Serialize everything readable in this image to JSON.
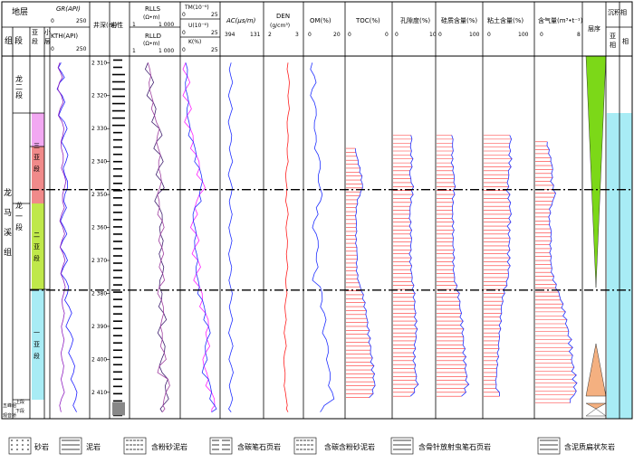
{
  "header": {
    "strata": "地层",
    "system": "组",
    "member": "段",
    "submember": "亚段",
    "sub_layer": "小层",
    "depth": "井深(m)",
    "lithology": "岩性",
    "sequence": "层序",
    "sedimentary_facies": "沉积相",
    "subfacies": "亚相",
    "facies": "相"
  },
  "formation_labels": {
    "longmaxi": [
      "龙",
      "马",
      "溪",
      "组"
    ],
    "long2": "龙二段",
    "long1": "龙一段",
    "sub3": "三亚段",
    "sub2": "二亚段",
    "sub1": "一亚段",
    "upper": "上段",
    "lower": "下段",
    "wufeng": "五峰组",
    "guanyinqiao": "观音桥"
  },
  "tracks": {
    "gr": {
      "label": "GR(API)",
      "min": "0",
      "max": "250"
    },
    "kth": {
      "label": "KTH(API)",
      "min": "0",
      "max": "250"
    },
    "rlls": {
      "label": "RLLS",
      "unit": "(Ω•m)",
      "min": "1",
      "max": "1 000"
    },
    "rlld": {
      "label": "RLLD",
      "unit": "(Ω•m)",
      "min": "1",
      "max": "1 000"
    },
    "tm": {
      "label": "TM(10⁻⁶)",
      "min": "0",
      "max": "25"
    },
    "u": {
      "label": "U(10⁻⁶)",
      "min": "0",
      "max": "25"
    },
    "k": {
      "label": "K(%)",
      "min": "0",
      "max": "25"
    },
    "ac": {
      "label": "AC(μs/m)",
      "min": "394",
      "max": "131"
    },
    "den": {
      "label": "DEN",
      "unit": "(g/cm³)",
      "min": "2",
      "max": "3"
    },
    "om": {
      "label": "OM(%)",
      "min": "0",
      "max": "20"
    },
    "toc": {
      "label": "TOC(%)",
      "min": "0",
      "max": "0"
    },
    "porosity": {
      "label": "孔隙度(%)",
      "min": "0",
      "max": "10"
    },
    "silica": {
      "label": "硅质含量(%)",
      "min": "0",
      "max": "100"
    },
    "clay": {
      "label": "粘土含量(%)",
      "min": "0",
      "max": "100"
    },
    "gas": {
      "label": "含气量(m³•t⁻¹)",
      "min": "0",
      "max": "8"
    }
  },
  "depth_ticks": [
    "2 310",
    "2 320",
    "2 330",
    "2 340",
    "2 350",
    "2 360",
    "2 370",
    "2 380",
    "2 390",
    "2 400",
    "2 410"
  ],
  "legend": [
    "砂岩",
    "泥岩",
    "含粉砂泥岩",
    "含碳笔石页岩",
    "含碳含粉砂泥岩",
    "含骨针放射虫笔石页岩",
    "含泥质扁状灰岩"
  ],
  "colors": {
    "sub3": "#f2a8f2",
    "sub3_lower": "#f08a8a",
    "sub2": "#bfe84a",
    "sub1": "#a8ecf5",
    "gr": "#2020ff",
    "kth": "#9020c0",
    "rlls": "#402070",
    "rlld": "#a040a0",
    "tm": "#2030ff",
    "u": "#ff20ff",
    "k": "#e040e0",
    "ac": "#2030ff",
    "den": "#ff2020",
    "om": "#2030ff",
    "bars": "#ff3030",
    "envelope": "#2030ff"
  },
  "chart_data": {
    "type": "well-log",
    "depth_range": [
      2308,
      2418
    ],
    "boundary_depths": [
      2348.5,
      2379
    ],
    "series": [
      {
        "name": "GR",
        "depth": [
          2310,
          2313,
          2316,
          2320,
          2324,
          2328,
          2332,
          2336,
          2340,
          2344,
          2348,
          2352,
          2356,
          2360,
          2364,
          2368,
          2372,
          2376,
          2380,
          2384,
          2388,
          2392,
          2396,
          2400,
          2404,
          2408,
          2412,
          2416
        ],
        "values": [
          68,
          72,
          60,
          75,
          70,
          90,
          88,
          95,
          100,
          92,
          110,
          86,
          82,
          88,
          80,
          92,
          85,
          100,
          110,
          120,
          118,
          130,
          135,
          140,
          150,
          155,
          165,
          170
        ]
      },
      {
        "name": "KTH",
        "depth": [
          2310,
          2313,
          2316,
          2320,
          2324,
          2328,
          2332,
          2336,
          2340,
          2344,
          2348,
          2352,
          2356,
          2360,
          2364,
          2368,
          2372,
          2376,
          2380,
          2384,
          2388,
          2392,
          2396,
          2400,
          2404,
          2408,
          2412,
          2416
        ],
        "values": [
          60,
          65,
          58,
          70,
          62,
          75,
          80,
          70,
          82,
          88,
          90,
          78,
          72,
          80,
          74,
          82,
          78,
          84,
          86,
          78,
          82,
          76,
          80,
          74,
          80,
          78,
          70,
          68
        ]
      },
      {
        "name": "RLLS",
        "depth": [
          2310,
          2314,
          2318,
          2322,
          2326,
          2330,
          2334,
          2338,
          2342,
          2346,
          2350,
          2354,
          2358,
          2362,
          2366,
          2370,
          2374,
          2378,
          2382,
          2386,
          2390,
          2394,
          2398,
          2402,
          2406,
          2410,
          2414,
          2416
        ],
        "values": [
          12,
          18,
          15,
          25,
          30,
          60,
          40,
          70,
          55,
          80,
          45,
          60,
          90,
          70,
          85,
          75,
          95,
          60,
          80,
          110,
          70,
          90,
          120,
          60,
          200,
          150,
          100,
          90
        ]
      },
      {
        "name": "U",
        "depth": [
          2310,
          2314,
          2318,
          2322,
          2326,
          2330,
          2334,
          2338,
          2342,
          2346,
          2350,
          2354,
          2358,
          2362,
          2366,
          2370,
          2374,
          2378,
          2382,
          2386,
          2390,
          2394,
          2398,
          2402,
          2406,
          2410,
          2414,
          2416
        ],
        "values": [
          3,
          4,
          3,
          5,
          4,
          6,
          8,
          10,
          12,
          14,
          12,
          9,
          8,
          10,
          9,
          11,
          10,
          12,
          14,
          16,
          18,
          17,
          16,
          15,
          18,
          20,
          22,
          20
        ]
      },
      {
        "name": "AC",
        "depth": [
          2310,
          2314,
          2318,
          2322,
          2326,
          2330,
          2334,
          2338,
          2342,
          2346,
          2350,
          2354,
          2358,
          2362,
          2366,
          2370,
          2374,
          2378,
          2382,
          2386,
          2390,
          2394,
          2398,
          2402,
          2406,
          2410,
          2414,
          2416
        ],
        "values": [
          330,
          332,
          335,
          334,
          336,
          338,
          330,
          332,
          336,
          334,
          330,
          335,
          333,
          336,
          334,
          338,
          332,
          334,
          330,
          332,
          334,
          330,
          332,
          328,
          330,
          332,
          334,
          330
        ]
      },
      {
        "name": "DEN",
        "depth": [
          2310,
          2314,
          2318,
          2322,
          2326,
          2330,
          2334,
          2338,
          2342,
          2346,
          2350,
          2354,
          2358,
          2362,
          2366,
          2370,
          2374,
          2378,
          2382,
          2386,
          2390,
          2394,
          2398,
          2402,
          2406,
          2410,
          2414,
          2416
        ],
        "values": [
          2.62,
          2.63,
          2.64,
          2.63,
          2.62,
          2.6,
          2.62,
          2.6,
          2.58,
          2.57,
          2.58,
          2.6,
          2.59,
          2.58,
          2.6,
          2.59,
          2.58,
          2.57,
          2.56,
          2.55,
          2.54,
          2.55,
          2.53,
          2.52,
          2.54,
          2.55,
          2.6,
          2.62
        ]
      },
      {
        "name": "OM",
        "depth": [
          2310,
          2314,
          2318,
          2322,
          2326,
          2330,
          2334,
          2338,
          2342,
          2346,
          2350,
          2354,
          2358,
          2362,
          2366,
          2370,
          2374,
          2378,
          2382,
          2386,
          2390,
          2394,
          2398,
          2402,
          2406,
          2410,
          2414,
          2416
        ],
        "values": [
          4,
          5,
          4,
          5,
          6,
          5,
          6,
          7,
          8,
          7,
          9,
          6,
          5,
          6,
          7,
          6,
          5,
          8,
          9,
          10,
          10,
          11,
          12,
          12,
          13,
          14,
          10,
          8
        ]
      },
      {
        "name": "TOC",
        "depth": [
          2336,
          2340,
          2344,
          2348,
          2352,
          2356,
          2360,
          2364,
          2368,
          2372,
          2376,
          2380,
          2384,
          2388,
          2392,
          2396,
          2400,
          2404,
          2408,
          2412
        ],
        "values": [
          1.2,
          1.6,
          2.0,
          2.2,
          1.5,
          1.3,
          1.4,
          1.3,
          1.5,
          1.4,
          1.6,
          2.2,
          2.5,
          2.8,
          3.0,
          3.2,
          3.4,
          3.6,
          3.8,
          3.2
        ]
      },
      {
        "name": "Porosity",
        "depth": [
          2332,
          2336,
          2340,
          2344,
          2348,
          2352,
          2356,
          2360,
          2364,
          2368,
          2372,
          2376,
          2380,
          2384,
          2388,
          2392,
          2396,
          2400,
          2404,
          2408,
          2412
        ],
        "values": [
          4.5,
          4.2,
          4.6,
          4.0,
          4.8,
          4.3,
          4.0,
          4.2,
          4.4,
          4.1,
          4.3,
          4.6,
          5.0,
          5.2,
          5.4,
          5.6,
          5.2,
          5.0,
          5.4,
          5.8,
          4.0
        ]
      },
      {
        "name": "Silica",
        "depth": [
          2332,
          2336,
          2340,
          2344,
          2348,
          2352,
          2356,
          2360,
          2364,
          2368,
          2372,
          2376,
          2380,
          2384,
          2388,
          2392,
          2396,
          2400,
          2404,
          2408,
          2412
        ],
        "values": [
          35,
          36,
          34,
          38,
          40,
          36,
          35,
          37,
          36,
          38,
          37,
          40,
          48,
          52,
          55,
          58,
          60,
          62,
          65,
          68,
          55
        ]
      },
      {
        "name": "Clay",
        "depth": [
          2332,
          2336,
          2340,
          2344,
          2348,
          2352,
          2356,
          2360,
          2364,
          2368,
          2372,
          2376,
          2380,
          2384,
          2388,
          2392,
          2396,
          2400,
          2404,
          2408,
          2412
        ],
        "values": [
          55,
          52,
          54,
          50,
          48,
          52,
          54,
          50,
          52,
          50,
          51,
          48,
          40,
          36,
          34,
          32,
          30,
          28,
          26,
          24,
          36
        ]
      },
      {
        "name": "Gas",
        "depth": [
          2334,
          2338,
          2342,
          2346,
          2350,
          2354,
          2358,
          2362,
          2366,
          2370,
          2374,
          2378,
          2382,
          2386,
          2390,
          2394,
          2398,
          2402,
          2406,
          2410,
          2414
        ],
        "values": [
          2.0,
          2.5,
          3.0,
          2.8,
          3.5,
          2.6,
          2.4,
          2.8,
          2.6,
          2.7,
          2.9,
          3.6,
          4.5,
          5.0,
          5.5,
          6.0,
          6.2,
          6.5,
          6.8,
          7.0,
          5.5
        ]
      }
    ]
  }
}
